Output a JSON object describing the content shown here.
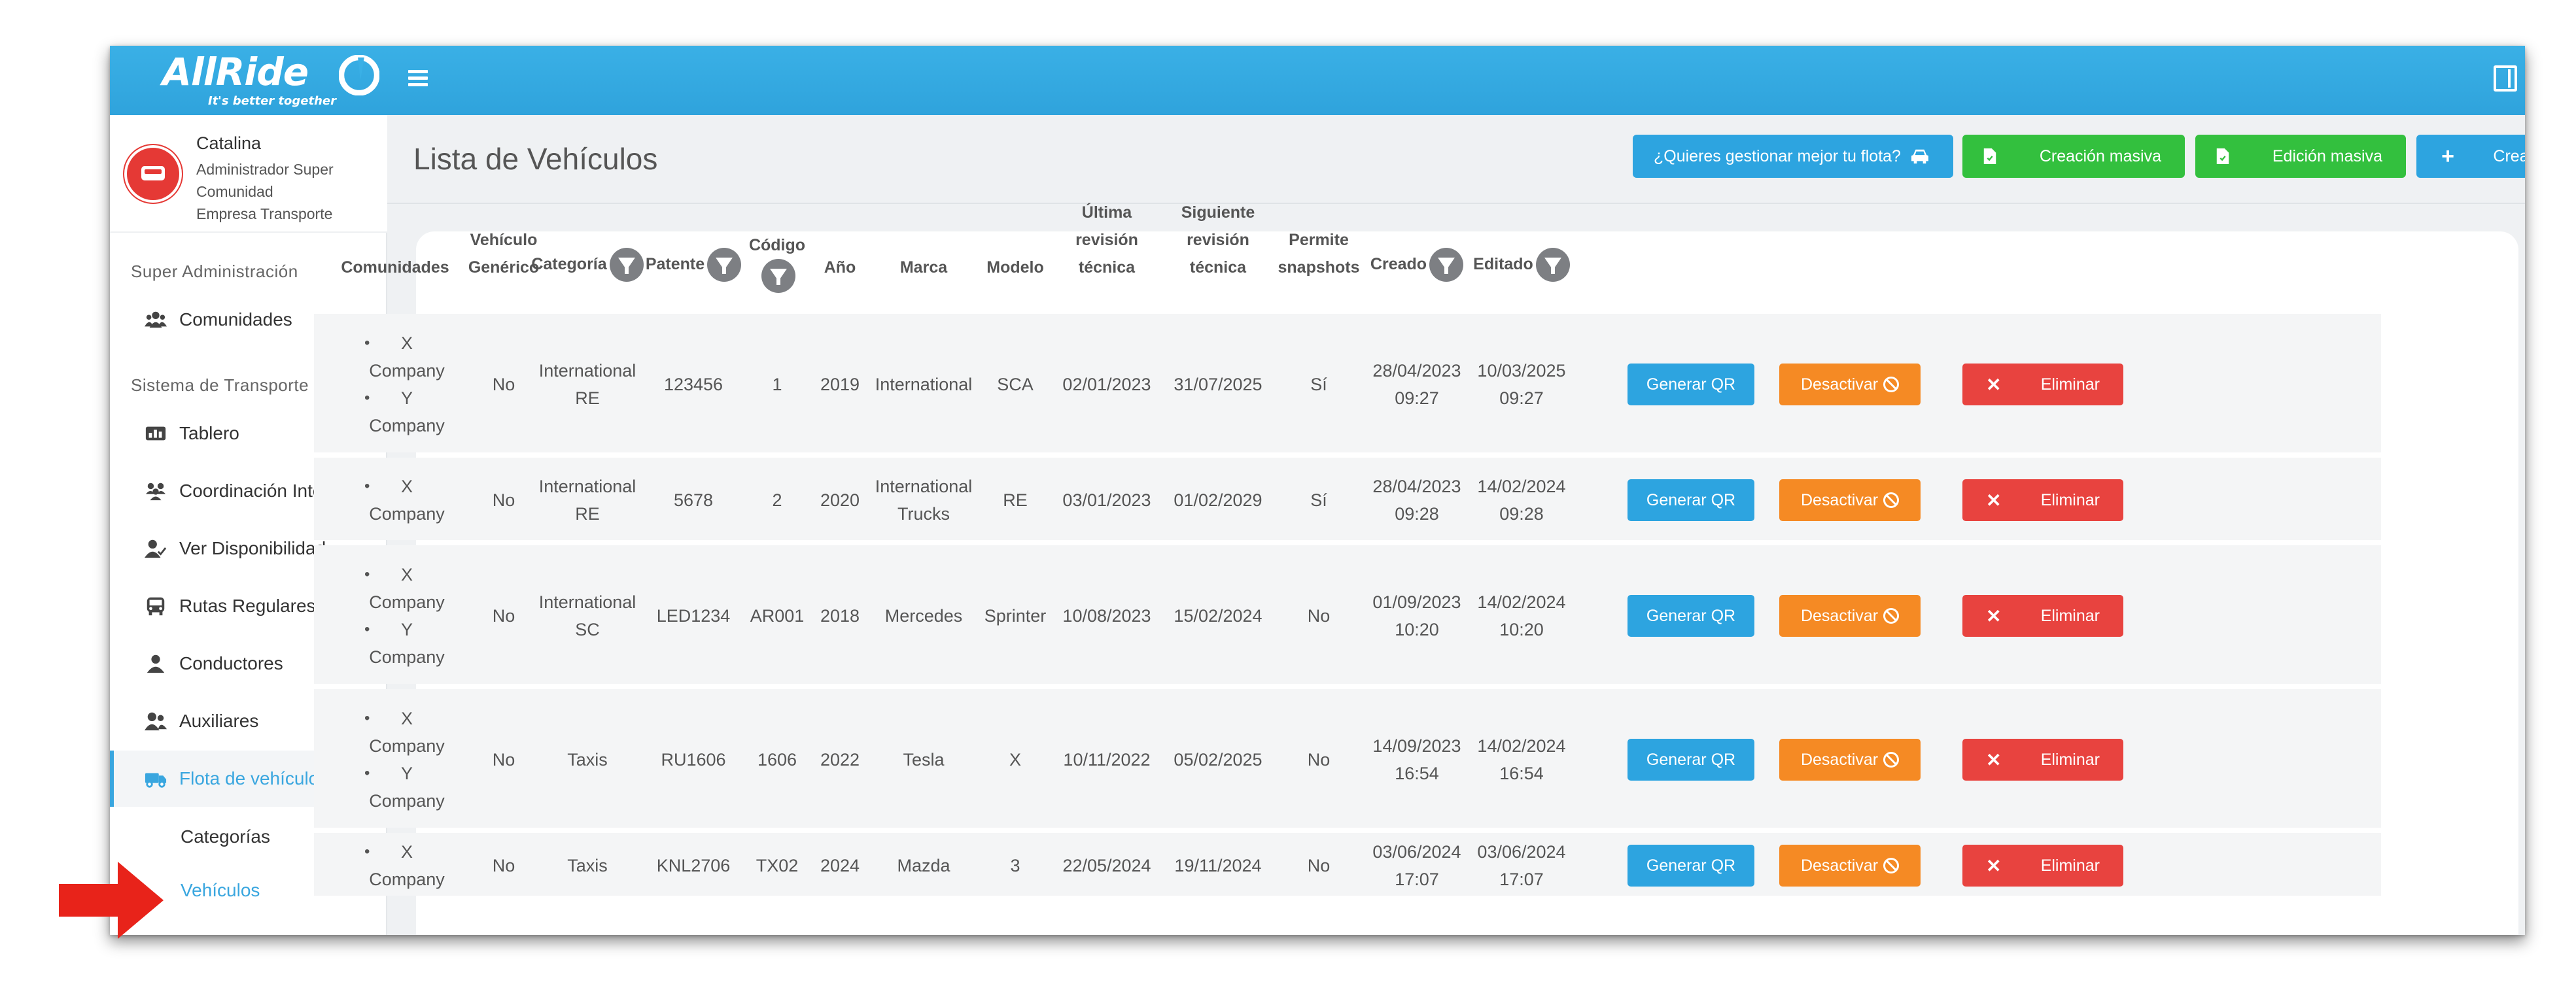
{
  "brand": {
    "logo": "AllRide",
    "tagline": "It's better together"
  },
  "user": {
    "name": "Catalina",
    "role_lines": [
      "Administrador Super",
      "Comunidad",
      "Empresa Transporte"
    ]
  },
  "sidebar": {
    "section_super": "Super Administración",
    "section_transport": "Sistema de Transporte Privado",
    "items": [
      {
        "label": "Comunidades",
        "icon": "users-icon"
      },
      {
        "label": "Tablero",
        "icon": "dashboard-icon"
      },
      {
        "label": "Coordinación Interna",
        "icon": "team-icon"
      },
      {
        "label": "Ver Disponibilidad",
        "icon": "user-check-icon"
      },
      {
        "label": "Rutas Regulares",
        "icon": "bus-icon"
      },
      {
        "label": "Conductores",
        "icon": "driver-icon"
      },
      {
        "label": "Auxiliares",
        "icon": "user-group-icon"
      },
      {
        "label": "Flota de vehículos",
        "icon": "truck-icon"
      }
    ],
    "subitems": [
      "Categorías",
      "Vehículos"
    ]
  },
  "header": {
    "title": "Lista de Vehículos",
    "btn_fleet": "¿Quieres gestionar mejor tu flota?",
    "btn_bulk_create": "Creación masiva",
    "btn_bulk_edit": "Edición masiva",
    "btn_create": "Crear vehículo"
  },
  "table": {
    "headers": {
      "comunidades": "Comunidades",
      "generico": [
        "Vehículo",
        "Genérico"
      ],
      "categoria": "Categoría",
      "patente": "Patente",
      "codigo": "Código",
      "anio": "Año",
      "marca": "Marca",
      "modelo": "Modelo",
      "ultima": [
        "Última",
        "revisión",
        "técnica"
      ],
      "siguiente": [
        "Siguiente",
        "revisión",
        "técnica"
      ],
      "snapshots": [
        "Permite",
        "snapshots"
      ],
      "creado": "Creado",
      "editado": "Editado"
    },
    "actions": {
      "qr": "Generar QR",
      "deactivate": "Desactivar",
      "delete": "Eliminar"
    },
    "rows": [
      {
        "communities": [
          "X Company",
          "Y Company"
        ],
        "generic": "No",
        "category": [
          "International",
          "RE"
        ],
        "plate": "123456",
        "code": "1",
        "year": "2019",
        "brand": [
          "International"
        ],
        "model": "SCA",
        "last": "02/01/2023",
        "next": "31/07/2025",
        "snap": "Sí",
        "created": [
          "28/04/2023",
          "09:27"
        ],
        "edited": [
          "10/03/2025",
          "09:27"
        ]
      },
      {
        "communities": [
          "X Company"
        ],
        "generic": "No",
        "category": [
          "International",
          "RE"
        ],
        "plate": "5678",
        "code": "2",
        "year": "2020",
        "brand": [
          "International",
          "Trucks"
        ],
        "model": "RE",
        "last": "03/01/2023",
        "next": "01/02/2029",
        "snap": "Sí",
        "created": [
          "28/04/2023",
          "09:28"
        ],
        "edited": [
          "14/02/2024",
          "09:28"
        ]
      },
      {
        "communities": [
          "X Company",
          "Y Company"
        ],
        "generic": "No",
        "category": [
          "International",
          "SC"
        ],
        "plate": "LED1234",
        "code": "AR001",
        "year": "2018",
        "brand": [
          "Mercedes"
        ],
        "model": "Sprinter",
        "last": "10/08/2023",
        "next": "15/02/2024",
        "snap": "No",
        "created": [
          "01/09/2023",
          "10:20"
        ],
        "edited": [
          "14/02/2024",
          "10:20"
        ]
      },
      {
        "communities": [
          "X Company",
          "Y Company"
        ],
        "generic": "No",
        "category": [
          "Taxis"
        ],
        "plate": "RU1606",
        "code": "1606",
        "year": "2022",
        "brand": [
          "Tesla"
        ],
        "model": "X",
        "last": "10/11/2022",
        "next": "05/02/2025",
        "snap": "No",
        "created": [
          "14/09/2023",
          "16:54"
        ],
        "edited": [
          "14/02/2024",
          "16:54"
        ]
      },
      {
        "communities": [
          "X Company"
        ],
        "generic": "No",
        "category": [
          "Taxis"
        ],
        "plate": "KNL2706",
        "code": "TX02",
        "year": "2024",
        "brand": [
          "Mazda"
        ],
        "model": "3",
        "last": "22/05/2024",
        "next": "19/11/2024",
        "snap": "No",
        "created": [
          "03/06/2024",
          "17:07"
        ],
        "edited": [
          "03/06/2024",
          "17:07"
        ]
      }
    ]
  },
  "colors": {
    "primary": "#2da4e0",
    "success": "#33c03e",
    "warning": "#f58a24",
    "danger": "#e8433f",
    "arrow": "#e8231a"
  }
}
